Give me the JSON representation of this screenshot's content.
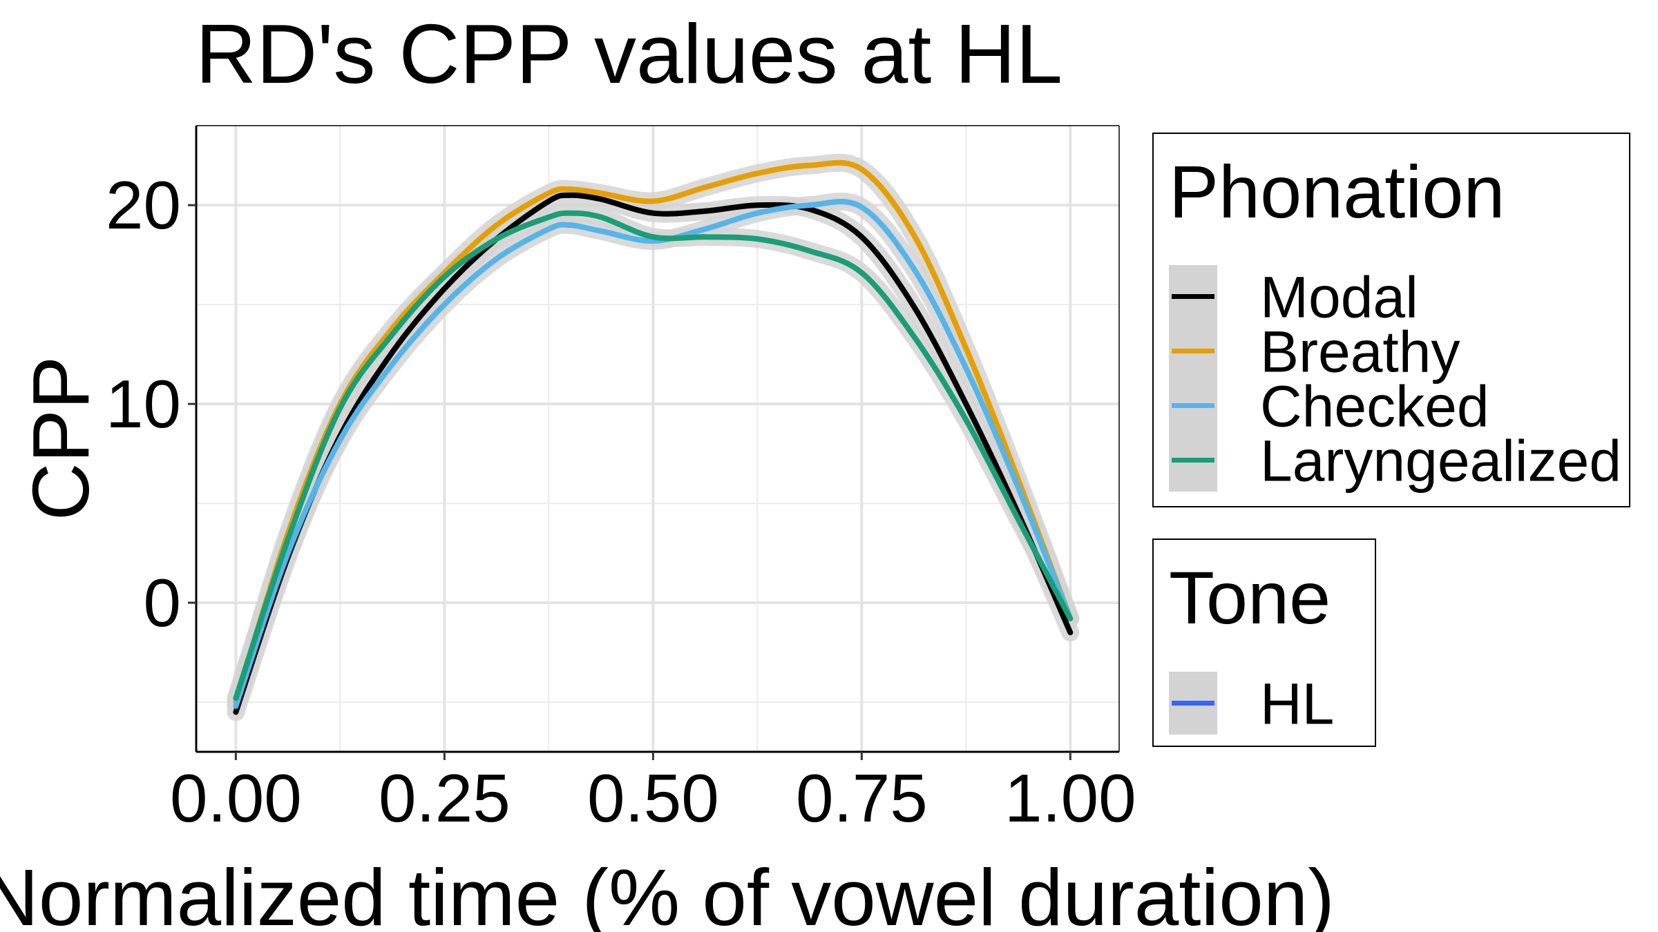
{
  "chart_data": {
    "type": "line",
    "title": "RD's CPP values at HL",
    "xlabel": "Normalized time (% of vowel duration)",
    "ylabel": "CPP",
    "xlim": [
      -0.095,
      2.117
    ],
    "ylim": [
      -7.5,
      24
    ],
    "x_ticks": [
      {
        "value": 0,
        "label": "0.00"
      },
      {
        "value": 0.5,
        "label": "0.25"
      },
      {
        "value": 1,
        "label": "0.50"
      },
      {
        "value": 1.5,
        "label": "0.75"
      },
      {
        "value": 2,
        "label": "1.00"
      }
    ],
    "y_ticks": [
      {
        "value": 0,
        "label": "0"
      },
      {
        "value": 10,
        "label": "10"
      },
      {
        "value": 20,
        "label": "20"
      }
    ],
    "x_minor_grid": [
      0.25,
      0.75,
      1.25,
      1.75
    ],
    "y_minor_grid": [
      -5,
      5,
      15
    ],
    "grid": true,
    "band_color": "#d3d3d3",
    "series": [
      {
        "name": "Modal",
        "color": "#000000",
        "x": [
          0,
          0.125,
          0.25,
          0.375,
          0.5,
          0.625,
          0.75,
          0.8,
          0.875,
          1.0,
          1.125,
          1.25,
          1.375,
          1.5,
          1.625,
          1.75,
          1.875,
          2.0
        ],
        "values": [
          -5.5,
          2.3,
          8.4,
          12.6,
          15.8,
          18.3,
          20.2,
          20.5,
          20.3,
          19.6,
          19.7,
          20.0,
          19.8,
          18.4,
          14.9,
          10.0,
          4.5,
          -1.5
        ]
      },
      {
        "name": "Breathy",
        "color": "#e69f00",
        "x": [
          0,
          0.125,
          0.25,
          0.375,
          0.5,
          0.625,
          0.75,
          0.8,
          0.875,
          1.0,
          1.125,
          1.25,
          1.375,
          1.5,
          1.625,
          1.75,
          1.875,
          2.0
        ],
        "values": [
          -5.0,
          3.5,
          10.0,
          13.8,
          16.6,
          19.0,
          20.6,
          20.8,
          20.6,
          20.2,
          20.9,
          21.6,
          22.0,
          21.8,
          18.5,
          12.8,
          6.2,
          -0.8
        ]
      },
      {
        "name": "Checked",
        "color": "#56b4e9",
        "x": [
          0,
          0.125,
          0.25,
          0.375,
          0.5,
          0.625,
          0.75,
          0.8,
          0.875,
          1.0,
          1.125,
          1.25,
          1.375,
          1.5,
          1.625,
          1.75,
          1.875,
          2.0
        ],
        "values": [
          -5.2,
          2.5,
          8.2,
          12.0,
          15.0,
          17.3,
          18.8,
          19.0,
          18.7,
          18.2,
          18.8,
          19.6,
          20.0,
          19.9,
          16.8,
          11.8,
          5.8,
          -0.8
        ]
      },
      {
        "name": "Laryngealized",
        "color": "#1b9e77",
        "x": [
          0,
          0.125,
          0.25,
          0.375,
          0.5,
          0.625,
          0.75,
          0.8,
          0.875,
          1.0,
          1.125,
          1.25,
          1.375,
          1.5,
          1.625,
          1.75,
          1.875,
          2.0
        ],
        "values": [
          -4.8,
          3.2,
          9.8,
          13.5,
          16.4,
          18.3,
          19.4,
          19.6,
          19.4,
          18.4,
          18.4,
          18.3,
          17.7,
          16.6,
          13.4,
          9.2,
          4.2,
          -0.8
        ]
      }
    ],
    "legends": [
      {
        "title": "Phonation",
        "items": [
          {
            "label": "Modal",
            "color": "#000000"
          },
          {
            "label": "Breathy",
            "color": "#e69f00"
          },
          {
            "label": "Checked",
            "color": "#56b4e9"
          },
          {
            "label": "Laryngealized",
            "color": "#1b9e77"
          }
        ]
      },
      {
        "title": "Tone",
        "items": [
          {
            "label": "HL",
            "color": "#3366ff"
          }
        ]
      }
    ],
    "legend_position": "right"
  }
}
